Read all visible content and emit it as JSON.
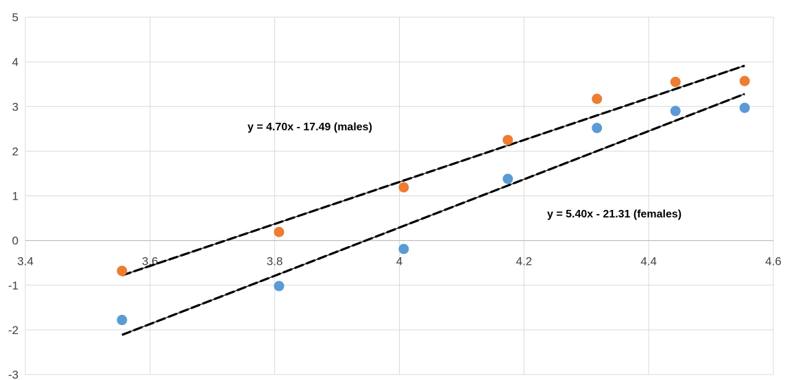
{
  "chart_data": {
    "type": "scatter",
    "xlim": [
      3.4,
      4.6
    ],
    "ylim": [
      -3,
      5
    ],
    "x_ticks": [
      "3.4",
      "3.6",
      "3.8",
      "4",
      "4.2",
      "4.4",
      "4.6"
    ],
    "y_ticks": [
      "-3",
      "-2",
      "-1",
      "0",
      "1",
      "2",
      "3",
      "4",
      "5"
    ],
    "grid": true,
    "series": [
      {
        "color": "#ED7D31",
        "points": [
          {
            "x": 3.555,
            "y": -0.68
          },
          {
            "x": 3.807,
            "y": 0.19
          },
          {
            "x": 4.007,
            "y": 1.19
          },
          {
            "x": 4.174,
            "y": 2.25
          },
          {
            "x": 4.317,
            "y": 3.17
          },
          {
            "x": 4.443,
            "y": 3.55
          },
          {
            "x": 4.554,
            "y": 3.57
          }
        ],
        "trendline": {
          "slope": 4.7,
          "intercept": -17.49,
          "x_range": [
            3.555,
            4.554
          ],
          "color": "#000000",
          "dash": "long-dash"
        },
        "equation_label": "y = 4.70x - 17.49 (males)"
      },
      {
        "color": "#5B9BD5",
        "points": [
          {
            "x": 3.555,
            "y": -1.78
          },
          {
            "x": 3.807,
            "y": -1.02
          },
          {
            "x": 4.007,
            "y": -0.19
          },
          {
            "x": 4.174,
            "y": 1.38
          },
          {
            "x": 4.317,
            "y": 2.52
          },
          {
            "x": 4.443,
            "y": 2.9
          },
          {
            "x": 4.554,
            "y": 2.97
          }
        ],
        "trendline": {
          "slope": 5.4,
          "intercept": -21.31,
          "x_range": [
            3.555,
            4.554
          ],
          "color": "#000000",
          "dash": "long-dash"
        },
        "equation_label": "y = 5.40x - 21.31 (females)"
      }
    ]
  }
}
